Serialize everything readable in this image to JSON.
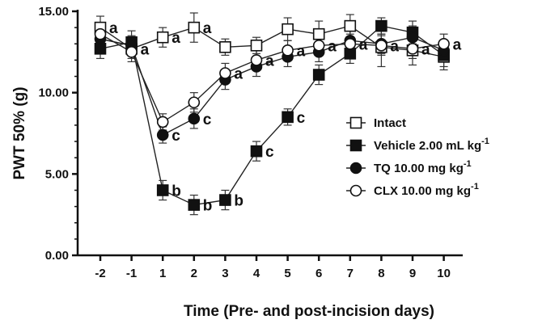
{
  "chart_data": {
    "type": "line",
    "xlabel": "Time (Pre- and post-incision days)",
    "ylabel": "PWT 50% (g)",
    "x": [
      -2,
      -1,
      1,
      2,
      3,
      4,
      5,
      6,
      7,
      8,
      9,
      10
    ],
    "x_tick_labels": [
      "-2",
      "-1",
      "1",
      "2",
      "3",
      "4",
      "5",
      "6",
      "7",
      "8",
      "9",
      "10"
    ],
    "ylim": [
      0,
      15
    ],
    "y_ticks": [
      0,
      5,
      10,
      15
    ],
    "y_tick_labels": [
      "0.00",
      "5.00",
      "10.00",
      "15.00"
    ],
    "legend_position": "center-right",
    "series": [
      {
        "name": "Intact",
        "legend_main": "Intact",
        "legend_sup": "",
        "marker": "open-square",
        "values": [
          14.0,
          12.7,
          13.4,
          14.0,
          12.8,
          12.9,
          13.9,
          13.6,
          14.1,
          12.8,
          12.6,
          12.2
        ],
        "errors": [
          0.7,
          0.6,
          0.6,
          0.9,
          0.5,
          0.5,
          0.7,
          0.8,
          0.7,
          1.2,
          0.9,
          0.8
        ],
        "sig_labels": [
          "a",
          "a",
          "a",
          "a",
          "",
          "",
          "",
          "",
          "",
          "",
          "",
          ""
        ]
      },
      {
        "name": "Vehicle 2.00 mL kg-1",
        "legend_main": "Vehicle 2.00 mL kg",
        "legend_sup": "-1",
        "marker": "filled-square",
        "values": [
          12.7,
          13.1,
          4.0,
          3.1,
          3.4,
          6.4,
          8.5,
          11.1,
          12.4,
          14.1,
          13.7,
          12.3
        ],
        "errors": [
          0.6,
          0.7,
          0.6,
          0.6,
          0.6,
          0.6,
          0.5,
          0.6,
          0.6,
          0.5,
          0.7,
          0.7
        ],
        "sig_labels": [
          "",
          "",
          "b",
          "b",
          "b",
          "c",
          "c",
          "",
          "",
          "",
          "",
          ""
        ]
      },
      {
        "name": "TQ 10.00 mg kg-1",
        "legend_main": "TQ 10.00 mg kg",
        "legend_sup": "-1",
        "marker": "filled-circle",
        "values": [
          13.3,
          12.9,
          7.4,
          8.4,
          10.8,
          11.6,
          12.2,
          12.5,
          13.2,
          13.0,
          13.4,
          12.6
        ],
        "errors": [
          0.6,
          0.6,
          0.5,
          0.6,
          0.6,
          0.6,
          0.6,
          0.6,
          0.6,
          0.6,
          0.7,
          0.6
        ],
        "sig_labels": [
          "",
          "",
          "c",
          "c",
          "",
          "",
          "",
          "",
          "",
          "",
          "",
          ""
        ]
      },
      {
        "name": "CLX 10.00 mg kg-1",
        "legend_main": "CLX 10.00 mg kg",
        "legend_sup": "-1",
        "marker": "open-circle",
        "values": [
          13.6,
          12.5,
          8.2,
          9.4,
          11.2,
          12.0,
          12.6,
          12.9,
          13.0,
          12.9,
          12.7,
          13.0
        ],
        "errors": [
          0.6,
          0.6,
          0.5,
          0.6,
          0.6,
          0.6,
          0.6,
          0.6,
          0.6,
          0.6,
          0.6,
          0.6
        ],
        "sig_labels": [
          "",
          "",
          "",
          "",
          "a",
          "a",
          "a",
          "a",
          "a",
          "a",
          "a",
          "a"
        ]
      }
    ]
  }
}
